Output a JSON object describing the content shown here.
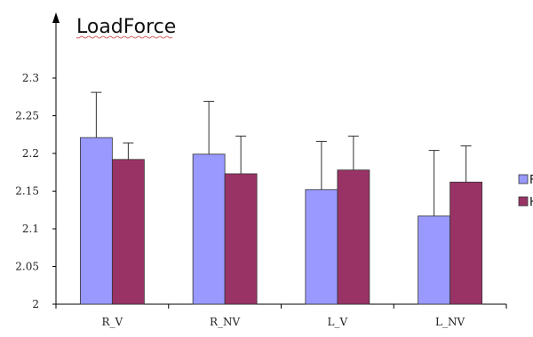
{
  "chart_data": {
    "type": "bar",
    "title": "LoadForce",
    "categories": [
      "R_V",
      "R_NV",
      "L_V",
      "L_NV"
    ],
    "ylim": [
      2,
      2.3
    ],
    "yticks": [
      "2",
      "2.05",
      "2.1",
      "2.15",
      "2.2",
      "2.25",
      "2.3"
    ],
    "grid": false,
    "legend": {
      "placement": "right",
      "labels": [
        "F",
        "H"
      ]
    },
    "series": [
      {
        "name": "F",
        "color": "#9999ff",
        "values": [
          2.221,
          2.199,
          2.152,
          2.117
        ],
        "error_upper": [
          0.06,
          0.07,
          0.064,
          0.087
        ]
      },
      {
        "name": "H",
        "color": "#993366",
        "values": [
          2.192,
          2.173,
          2.178,
          2.162
        ],
        "error_upper": [
          0.022,
          0.05,
          0.045,
          0.048
        ]
      }
    ]
  }
}
